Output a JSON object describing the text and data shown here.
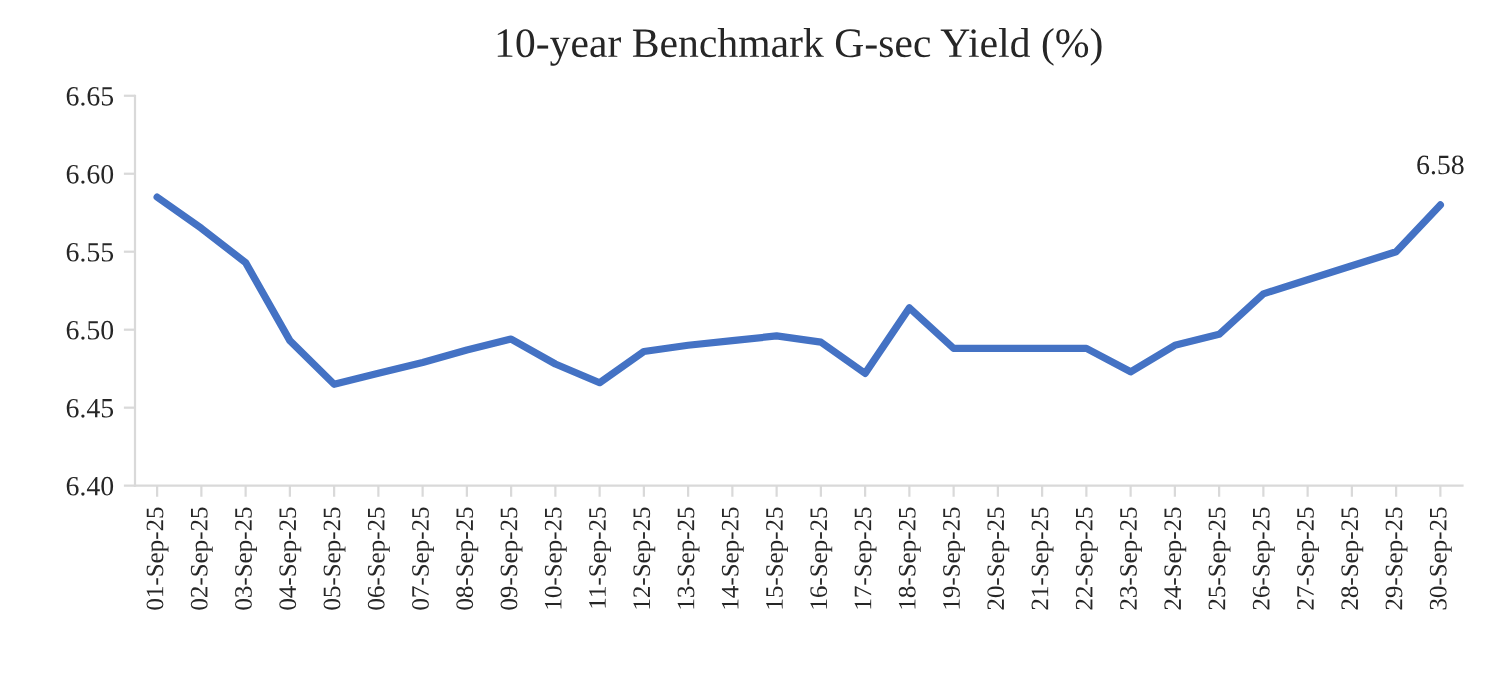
{
  "chart_data": {
    "type": "line",
    "title": "10-year Benchmark G-sec Yield (%)",
    "categories": [
      "01-Sep-25",
      "02-Sep-25",
      "03-Sep-25",
      "04-Sep-25",
      "05-Sep-25",
      "06-Sep-25",
      "07-Sep-25",
      "08-Sep-25",
      "09-Sep-25",
      "10-Sep-25",
      "11-Sep-25",
      "12-Sep-25",
      "13-Sep-25",
      "14-Sep-25",
      "15-Sep-25",
      "16-Sep-25",
      "17-Sep-25",
      "18-Sep-25",
      "19-Sep-25",
      "20-Sep-25",
      "21-Sep-25",
      "22-Sep-25",
      "23-Sep-25",
      "24-Sep-25",
      "25-Sep-25",
      "26-Sep-25",
      "27-Sep-25",
      "28-Sep-25",
      "29-Sep-25",
      "30-Sep-25"
    ],
    "series": [
      {
        "color": "#4472c4",
        "values": [
          6.585,
          6.565,
          6.543,
          6.493,
          6.465,
          6.472,
          6.479,
          6.487,
          6.494,
          6.478,
          6.466,
          6.486,
          6.49,
          6.493,
          6.496,
          6.492,
          6.472,
          6.514,
          6.488,
          6.488,
          6.488,
          6.488,
          6.473,
          6.49,
          6.497,
          6.523,
          6.532,
          6.541,
          6.55,
          6.58
        ],
        "value_labels": [
          null,
          null,
          null,
          null,
          null,
          null,
          null,
          null,
          null,
          null,
          null,
          null,
          null,
          null,
          null,
          null,
          null,
          null,
          null,
          null,
          null,
          null,
          null,
          null,
          null,
          null,
          null,
          null,
          null,
          "6.58"
        ]
      }
    ],
    "ylim": [
      6.4,
      6.65
    ],
    "yticks": [
      {
        "value": 6.4,
        "label": "6.40"
      },
      {
        "value": 6.45,
        "label": "6.45"
      },
      {
        "value": 6.5,
        "label": "6.50"
      },
      {
        "value": 6.55,
        "label": "6.55"
      },
      {
        "value": 6.6,
        "label": "6.60"
      },
      {
        "value": 6.65,
        "label": "6.65"
      }
    ],
    "grid": false,
    "legend": false,
    "marker": "none",
    "line_style": "solid"
  }
}
